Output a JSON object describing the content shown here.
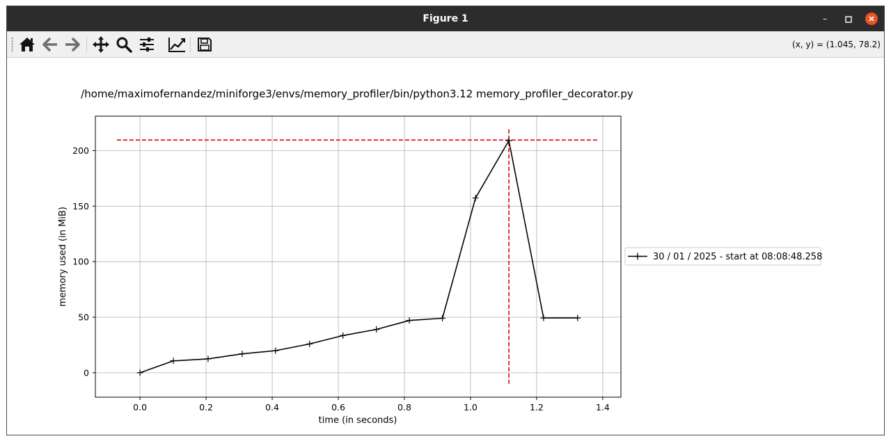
{
  "window": {
    "title": "Figure 1",
    "coords_readout": "(x, y) = (1.045, 78.2)"
  },
  "toolbar": {
    "buttons": [
      "home-icon",
      "back-arrow-icon",
      "forward-arrow-icon",
      "pan-icon",
      "zoom-icon",
      "configure-subplots-icon",
      "edit-axis-icon",
      "save-icon"
    ]
  },
  "colors": {
    "close_button": "#e95420",
    "series_line": "#000000",
    "marker_lines": "#e00000",
    "grid": "#b0b0b0"
  },
  "chart_data": {
    "type": "line",
    "title": "/home/maximofernandez/miniforge3/envs/memory_profiler/bin/python3.12 memory_profiler_decorator.py",
    "xlabel": "time (in seconds)",
    "ylabel": "memory used (in MiB)",
    "xlim": [
      -0.135,
      1.455
    ],
    "ylim": [
      -22,
      231
    ],
    "xticks": [
      0.0,
      0.2,
      0.4,
      0.6,
      0.8,
      1.0,
      1.2,
      1.4
    ],
    "xtick_labels": [
      "0.0",
      "0.2",
      "0.4",
      "0.6",
      "0.8",
      "1.0",
      "1.2",
      "1.4"
    ],
    "yticks": [
      0,
      50,
      100,
      150,
      200
    ],
    "ytick_labels": [
      "0",
      "50",
      "100",
      "150",
      "200"
    ],
    "grid": true,
    "legend_position": "right, outside",
    "series": [
      {
        "name": "30 / 01 / 2025 - start at 08:08:48.258",
        "marker": "+",
        "x": [
          0.0,
          0.101,
          0.206,
          0.309,
          0.41,
          0.513,
          0.614,
          0.715,
          0.815,
          0.915,
          1.015,
          1.116,
          1.221,
          1.324
        ],
        "y": [
          0.0,
          10.7,
          12.5,
          17.0,
          19.9,
          25.9,
          33.5,
          39.0,
          47.1,
          49.1,
          157.3,
          209.0,
          49.3,
          49.3
        ]
      }
    ],
    "peak_markers": {
      "hline": {
        "y": 209.5,
        "xmin": -0.07,
        "xmax": 1.385
      },
      "vline": {
        "x": 1.116,
        "ymin": -10,
        "ymax": 220
      }
    }
  }
}
